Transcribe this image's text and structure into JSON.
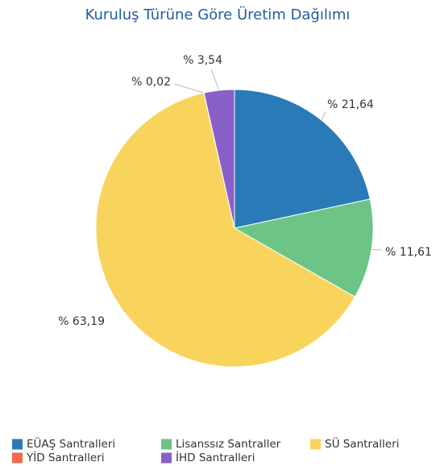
{
  "chart_data": {
    "type": "pie",
    "title": "Kuruluş Türüne Göre Üretim Dağılımı",
    "categories": [
      "EÜAŞ Santralleri",
      "Lisanssız Santraller",
      "SÜ Santralleri",
      "YİD Santralleri",
      "İHD Santralleri"
    ],
    "values": [
      21.64,
      11.61,
      63.19,
      0.02,
      3.54
    ],
    "value_labels": [
      "% 21,64",
      "% 11,61",
      "% 63,19",
      "% 0,02",
      "% 3,54"
    ],
    "colors": [
      "#2a7ab8",
      "#6cc486",
      "#f9d45c",
      "#ef6b4d",
      "#8b5fc8"
    ]
  }
}
